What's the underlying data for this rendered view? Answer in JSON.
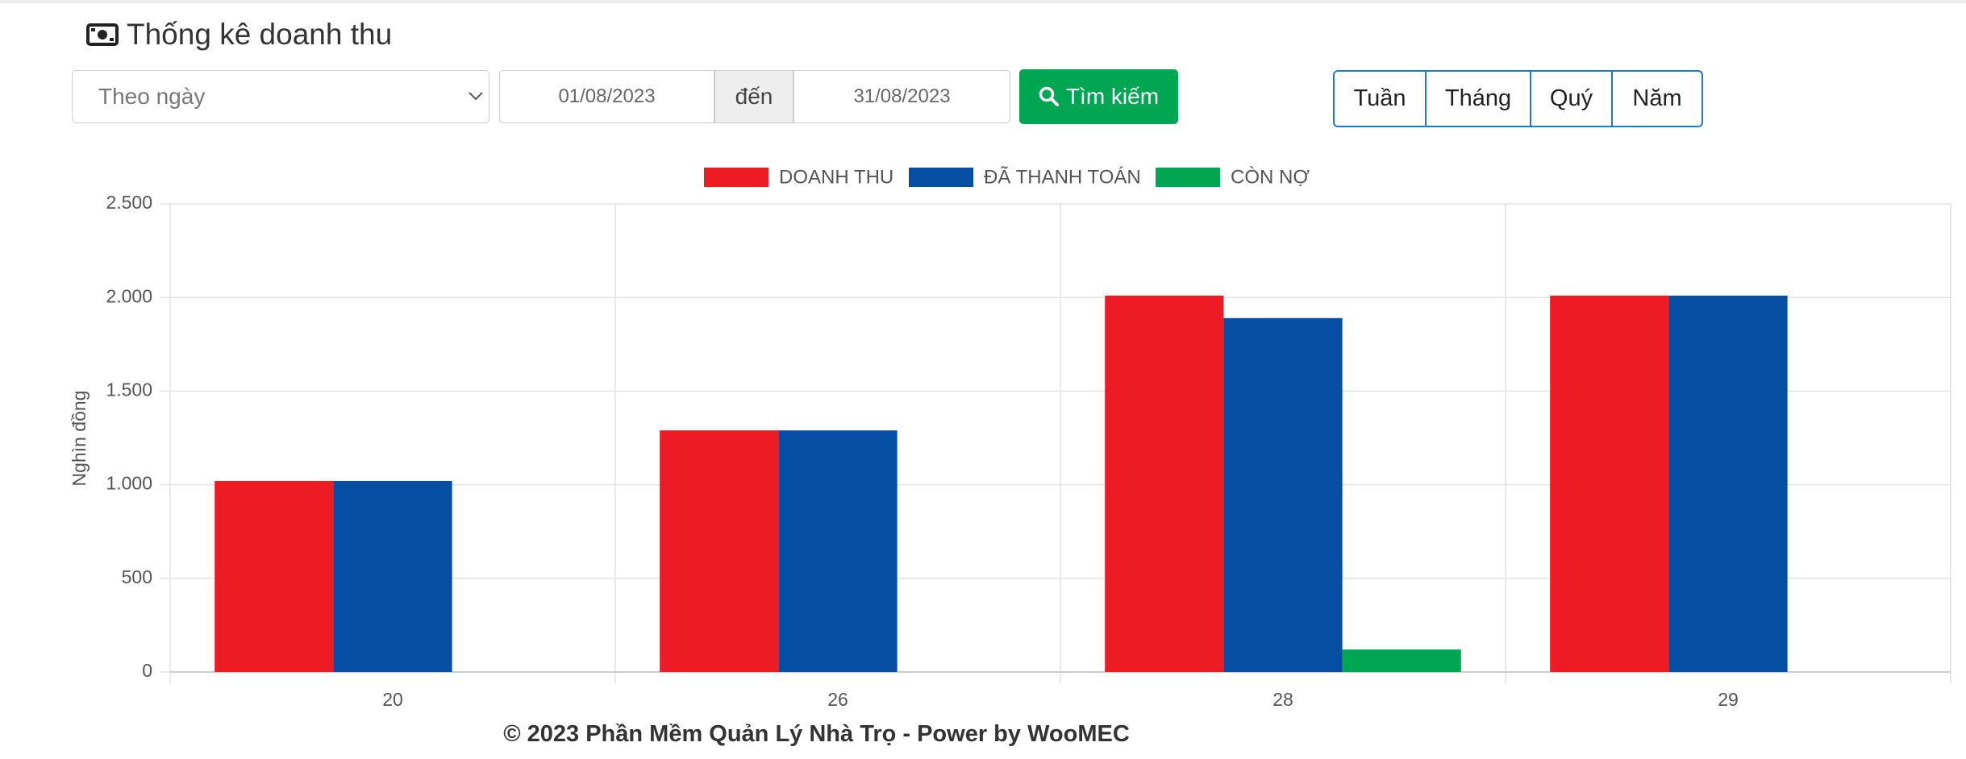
{
  "header": {
    "title": "Thống kê doanh thu"
  },
  "form": {
    "select": "Theo ngày",
    "date_from": "01/08/2023",
    "separator": "đến",
    "date_to": "31/08/2023",
    "button": "Tìm kiếm"
  },
  "period_buttons": [
    "Tuần",
    "Tháng",
    "Quý",
    "Năm"
  ],
  "chart_data": {
    "type": "bar",
    "y_label": "Nghìn đồng",
    "categories": [
      "20",
      "26",
      "28",
      "29"
    ],
    "series": [
      {
        "name": "DOANH THU",
        "color": "#ed1c24",
        "values": [
          1020,
          1290,
          2010,
          2010
        ]
      },
      {
        "name": "ĐÃ THANH TOÁN",
        "color": "#054ea3",
        "values": [
          1020,
          1290,
          1890,
          2010
        ]
      },
      {
        "name": "CÒN NỢ",
        "color": "#00a651",
        "values": [
          0,
          0,
          120,
          0
        ]
      }
    ],
    "ylim": [
      0,
      2500
    ],
    "yticks": [
      0,
      500,
      {
        "value": 1000,
        "label": "1.000"
      },
      {
        "value": 1500,
        "label": "1.500"
      },
      {
        "value": 2000,
        "label": "2.000"
      },
      {
        "value": 2500,
        "label": "2.500"
      }
    ],
    "grid": true,
    "legend": "top"
  },
  "footer": "© 2023 Phần Mềm Quản Lý Nhà Trọ - Power by WooMEC"
}
